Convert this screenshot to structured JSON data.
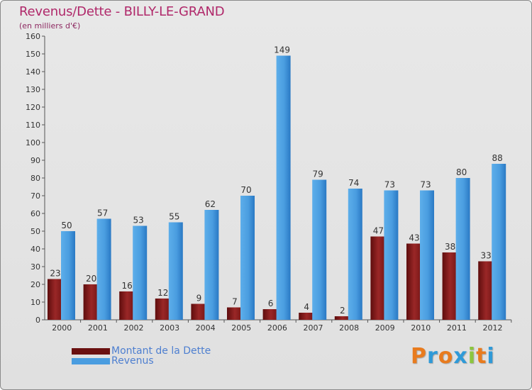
{
  "header": {
    "title": "Revenus/Dette - BILLY-LE-GRAND",
    "subtitle": "(en milliers d'€)"
  },
  "colors": {
    "title": "#b0286a",
    "debt_dark": "#5e0d0d",
    "debt_light": "#a53030",
    "revenue_dark": "#2a79c4",
    "revenue_light": "#5daeea",
    "legend_text": "#4e7fd0"
  },
  "legend": {
    "debt_label": "Montant de la Dette",
    "revenue_label": "Revenus"
  },
  "logo": {
    "text": "Proxiti",
    "letters": [
      "P",
      "r",
      "o",
      "x",
      "i",
      "t",
      "i"
    ],
    "letter_colors": [
      "#e87b1e",
      "#2f9ad8",
      "#e87b1e",
      "#2f9ad8",
      "#8cc63f",
      "#e87b1e",
      "#2f9ad8"
    ]
  },
  "chart_data": {
    "type": "bar",
    "title": "Revenus/Dette - BILLY-LE-GRAND",
    "ylabel": "(en milliers d'€)",
    "xlabel": "",
    "categories": [
      "2000",
      "2001",
      "2002",
      "2003",
      "2004",
      "2005",
      "2006",
      "2007",
      "2008",
      "2009",
      "2010",
      "2011",
      "2012"
    ],
    "series": [
      {
        "name": "Montant de la Dette",
        "values": [
          23,
          20,
          16,
          12,
          9,
          7,
          6,
          4,
          2,
          47,
          43,
          38,
          33
        ]
      },
      {
        "name": "Revenus",
        "values": [
          50,
          57,
          53,
          55,
          62,
          70,
          149,
          79,
          74,
          73,
          73,
          80,
          88
        ]
      }
    ],
    "ylim": [
      0,
      160
    ],
    "yticks": [
      0,
      10,
      20,
      30,
      40,
      50,
      60,
      70,
      80,
      90,
      100,
      110,
      120,
      130,
      140,
      150,
      160
    ],
    "grid": false,
    "legend_position": "bottom-left"
  }
}
